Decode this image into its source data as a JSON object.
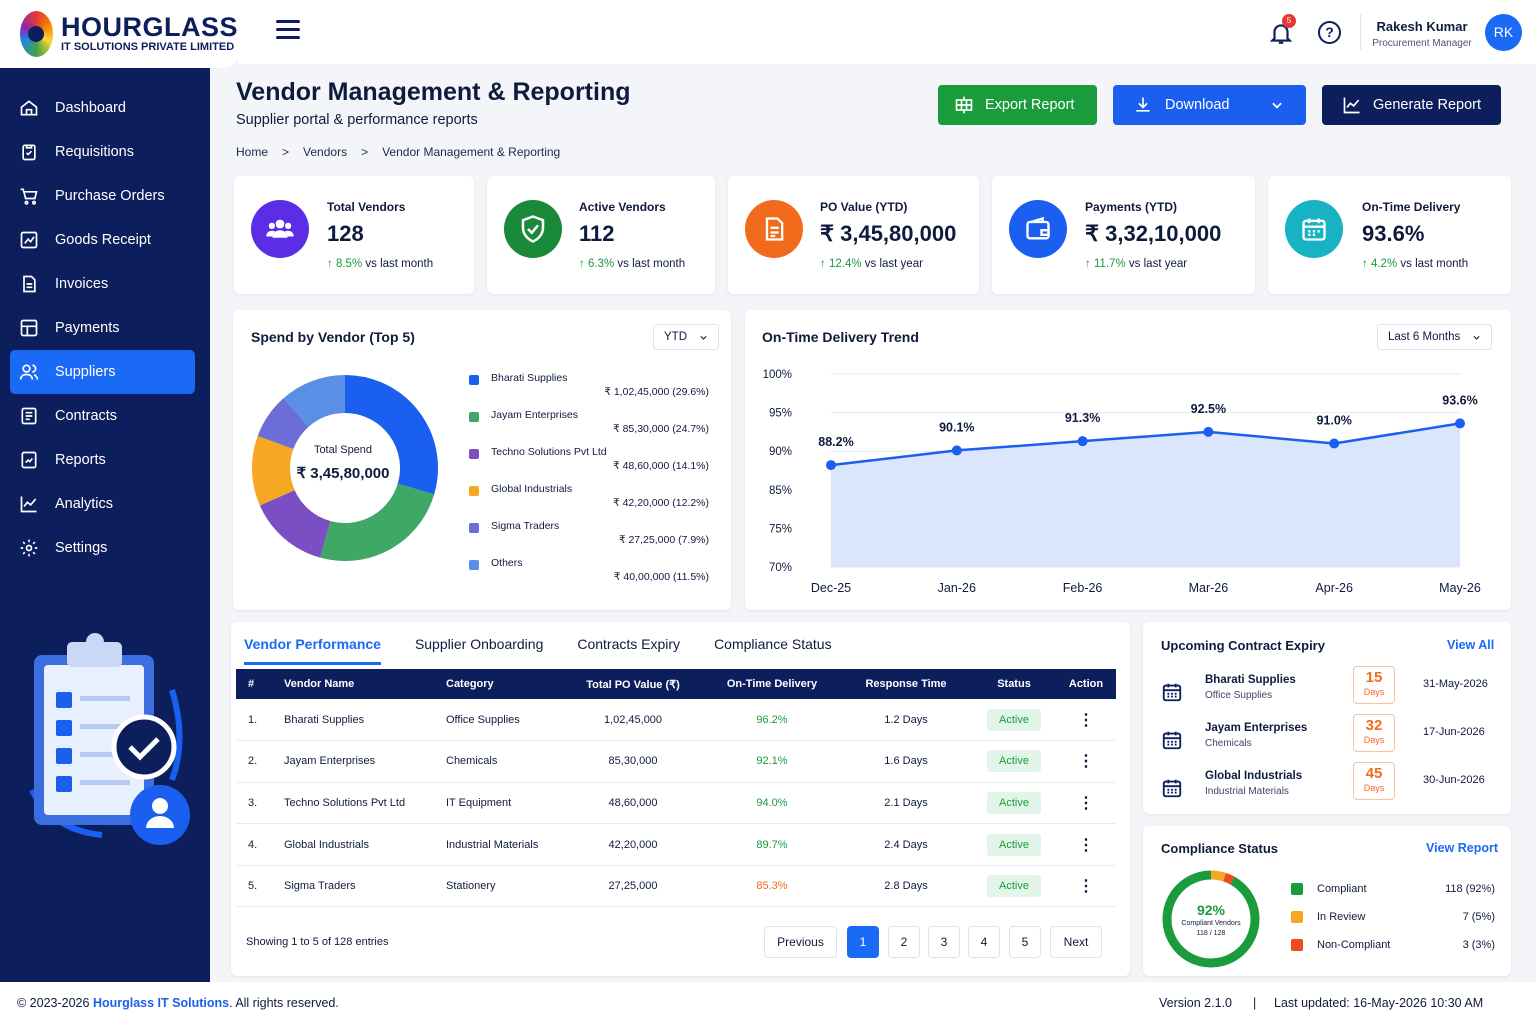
{
  "app": {
    "logo_title": "HOURGLASS",
    "logo_subtitle": "IT SOLUTIONS PRIVATE LIMITED"
  },
  "topbar": {
    "notification_count": "5",
    "help_glyph": "?",
    "user_name": "Rakesh Kumar",
    "user_role": "Procurement Manager",
    "avatar_initials": "RK"
  },
  "sidebar": {
    "items": [
      {
        "label": "Dashboard",
        "icon": "home-icon"
      },
      {
        "label": "Requisitions",
        "icon": "clipboard-icon"
      },
      {
        "label": "Purchase Orders",
        "icon": "cart-icon"
      },
      {
        "label": "Goods Receipt",
        "icon": "receipt-icon"
      },
      {
        "label": "Invoices",
        "icon": "invoice-icon"
      },
      {
        "label": "Payments",
        "icon": "payments-icon"
      },
      {
        "label": "Suppliers",
        "icon": "users-icon",
        "active": true
      },
      {
        "label": "Contracts",
        "icon": "contract-icon"
      },
      {
        "label": "Reports",
        "icon": "report-icon"
      },
      {
        "label": "Analytics",
        "icon": "analytics-icon"
      },
      {
        "label": "Settings",
        "icon": "gear-icon"
      }
    ]
  },
  "header": {
    "title": "Vendor Management & Reporting",
    "subtitle": "Supplier portal & performance reports",
    "breadcrumb": [
      "Home",
      "Vendors",
      "Vendor Management & Reporting"
    ],
    "export_label": "Export Report",
    "download_label": "Download",
    "generate_label": "Generate Report"
  },
  "kpis": [
    {
      "label": "Total Vendors",
      "value": "128",
      "change": "8.5%",
      "period": "vs last month",
      "color": "#5b2ee6",
      "icon": "users-icon"
    },
    {
      "label": "Active Vendors",
      "value": "112",
      "change": "6.3%",
      "period": "vs last month",
      "color": "#1a8a3a",
      "icon": "shield-check-icon"
    },
    {
      "label": "PO Value (YTD)",
      "value": "₹ 3,45,80,000",
      "change": "12.4%",
      "period": "vs last year",
      "color": "#f26b1d",
      "icon": "document-icon"
    },
    {
      "label": "Payments (YTD)",
      "value": "₹ 3,32,10,000",
      "change": "11.7%",
      "period": "vs last year",
      "color": "#1a5ff0",
      "icon": "wallet-icon"
    },
    {
      "label": "On-Time Delivery",
      "value": "93.6%",
      "change": "4.2%",
      "period": "vs last month",
      "color": "#17b3c4",
      "icon": "calendar-icon"
    }
  ],
  "spend": {
    "title": "Spend by Vendor (Top 5)",
    "filter": "YTD",
    "center_label": "Total Spend",
    "center_value": "₹ 3,45,80,000"
  },
  "delivery": {
    "title": "On-Time Delivery Trend",
    "filter": "Last 6 Months"
  },
  "chart_data": [
    {
      "type": "pie",
      "title": "Spend by Vendor (Top 5)",
      "labels": [
        "Bharati Supplies",
        "Jayam Enterprises",
        "Techno Solutions Pvt Ltd",
        "Global Industrials",
        "Sigma Traders",
        "Others"
      ],
      "values": [
        29.6,
        24.7,
        14.1,
        12.2,
        7.9,
        11.5
      ],
      "amounts": [
        "₹ 1,02,45,000 (29.6%)",
        "₹ 85,30,000 (24.7%)",
        "₹ 48,60,000 (14.1%)",
        "₹ 42,20,000 (12.2%)",
        "₹ 27,25,000  (7.9%)",
        "₹ 40,00,000 (11.5%)"
      ],
      "colors": [
        "#1a5ff0",
        "#3fa866",
        "#7b4fc4",
        "#f7a823",
        "#6b6ed6",
        "#5a8fe6"
      ]
    },
    {
      "type": "area",
      "title": "On-Time Delivery Trend",
      "categories": [
        "Dec-25",
        "Jan-26",
        "Feb-26",
        "Mar-26",
        "Apr-26",
        "May-26"
      ],
      "values": [
        88.2,
        90.1,
        91.3,
        92.5,
        91.0,
        93.6
      ],
      "data_labels": [
        "88.2%",
        "90.1%",
        "91.3%",
        "92.5%",
        "91.0%",
        "93.6%"
      ],
      "y_ticks": [
        "100%",
        "95%",
        "90%",
        "85%",
        "75%",
        "70%"
      ],
      "ylim": [
        70,
        100
      ],
      "grid": true,
      "color": "#1a5ff0"
    }
  ],
  "tabs": [
    "Vendor Performance",
    "Supplier Onboarding",
    "Contracts Expiry",
    "Compliance Status"
  ],
  "table": {
    "headers": [
      "#",
      "Vendor Name",
      "Category",
      "Total PO Value (₹)",
      "On-Time Delivery",
      "Response Time",
      "Status",
      "Action"
    ],
    "rows": [
      {
        "n": "1.",
        "name": "Bharati Supplies",
        "category": "Office Supplies",
        "po": "1,02,45,000",
        "otd": "96.2%",
        "otd_color": "#1a9b3c",
        "resp": "1.2 Days",
        "status": "Active"
      },
      {
        "n": "2.",
        "name": "Jayam Enterprises",
        "category": "Chemicals",
        "po": "85,30,000",
        "otd": "92.1%",
        "otd_color": "#1a9b3c",
        "resp": "1.6 Days",
        "status": "Active"
      },
      {
        "n": "3.",
        "name": "Techno Solutions Pvt Ltd",
        "category": "IT Equipment",
        "po": "48,60,000",
        "otd": "94.0%",
        "otd_color": "#1a9b3c",
        "resp": "2.1 Days",
        "status": "Active"
      },
      {
        "n": "4.",
        "name": "Global Industrials",
        "category": "Industrial Materials",
        "po": "42,20,000",
        "otd": "89.7%",
        "otd_color": "#1a9b3c",
        "resp": "2.4 Days",
        "status": "Active"
      },
      {
        "n": "5.",
        "name": "Sigma Traders",
        "category": "Stationery",
        "po": "27,25,000",
        "otd": "85.3%",
        "otd_color": "#f26b1d",
        "resp": "2.8 Days",
        "status": "Active"
      }
    ],
    "showing": "Showing 1 to 5 of 128 entries",
    "prev": "Previous",
    "next": "Next",
    "pages": [
      "1",
      "2",
      "3",
      "4",
      "5"
    ]
  },
  "expiry": {
    "title": "Upcoming Contract Expiry",
    "view_all": "View All",
    "items": [
      {
        "name": "Bharati Supplies",
        "category": "Office Supplies",
        "days": "15",
        "days_label": "Days",
        "date": "31-May-2026"
      },
      {
        "name": "Jayam Enterprises",
        "category": "Chemicals",
        "days": "32",
        "days_label": "Days",
        "date": "17-Jun-2026"
      },
      {
        "name": "Global Industrials",
        "category": "Industrial Materials",
        "days": "45",
        "days_label": "Days",
        "date": "30-Jun-2026"
      }
    ]
  },
  "compliance": {
    "title": "Compliance Status",
    "view_report": "View Report",
    "center_value": "92%",
    "center_label": "Compliant Vendors",
    "center_count": "118 / 128",
    "items": [
      {
        "label": "Compliant",
        "value": "118 (92%)",
        "color": "#1a9b3c",
        "pct": 92
      },
      {
        "label": "In Review",
        "value": "7 (5%)",
        "color": "#f7a823",
        "pct": 5
      },
      {
        "label": "Non-Compliant",
        "value": "3 (3%)",
        "color": "#f04a1e",
        "pct": 3
      }
    ]
  },
  "footer": {
    "copyright_prefix": "© 2023-2026 ",
    "company": "Hourglass IT Solutions",
    "copyright_suffix": ". All rights reserved.",
    "version": "Version 2.1.0",
    "separator": "|",
    "updated": "Last updated: 16-May-2026 10:30 AM"
  }
}
